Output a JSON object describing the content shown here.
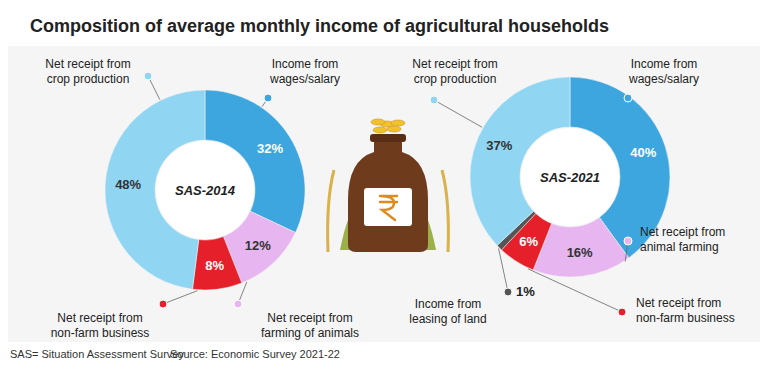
{
  "title": "Composition of average monthly income of agricultural households",
  "note": "SAS= Situation Assessment Survey",
  "source": "Source: Economic Survey 2021-22",
  "chart_data": [
    {
      "type": "pie",
      "title": "SAS-2014",
      "categories": [
        "Income from wages/salary",
        "Net receipt from farming of animals",
        "Net receipt from non-farm business",
        "Net receipt from crop production"
      ],
      "values": [
        32,
        12,
        8,
        48
      ],
      "value_labels": [
        "32%",
        "12%",
        "8%",
        "48%"
      ],
      "colors": [
        "#3ea6de",
        "#e7b5ef",
        "#e5202a",
        "#90d6f3"
      ],
      "data_labels": true
    },
    {
      "type": "pie",
      "title": "SAS-2021",
      "categories": [
        "Income from wages/salary",
        "Net receipt from animal farming",
        "Net receipt from non-farm business",
        "Income from leasing of land",
        "Net receipt from crop production"
      ],
      "values": [
        40,
        16,
        6,
        1,
        37
      ],
      "value_labels": [
        "40%",
        "16%",
        "6%",
        "1%",
        "37%"
      ],
      "colors": [
        "#3ea6de",
        "#e7b5ef",
        "#e5202a",
        "#555555",
        "#90d6f3"
      ],
      "data_labels": true
    }
  ]
}
